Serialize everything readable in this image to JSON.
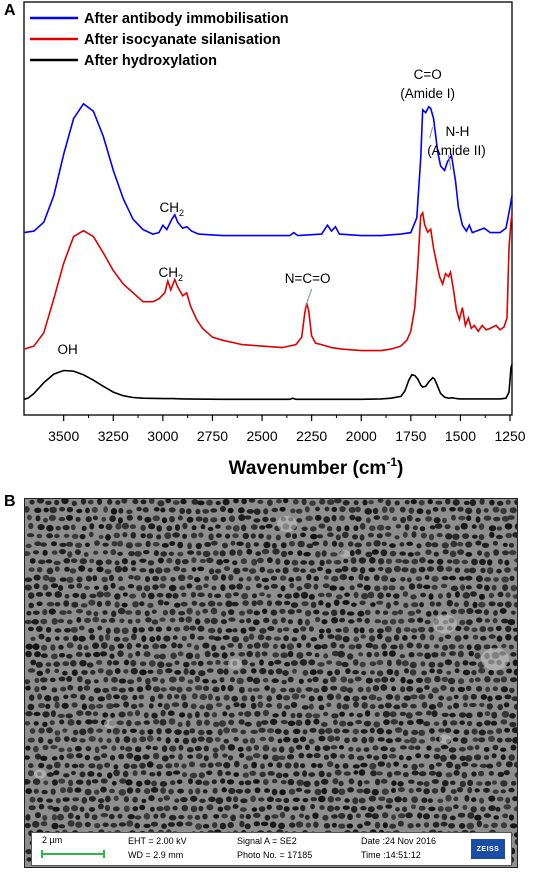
{
  "panel_a_label": "A",
  "panel_b_label": "B",
  "chart_data": {
    "type": "line",
    "title": "",
    "xlabel": "Wavenumber (cm-1)",
    "xlabel_base": "Wavenumber (cm",
    "xlabel_sup": "-1",
    "xlabel_tail": ")",
    "ylabel": "",
    "xlim": [
      3700,
      1240
    ],
    "x_reversed": true,
    "xticks": [
      3500,
      3250,
      3000,
      2750,
      2500,
      2250,
      2000,
      1750,
      1500,
      1250
    ],
    "yticks_shown": false,
    "legend_position": "top-left",
    "series": [
      {
        "name": "After antibody immobilisation",
        "color": "#0000ff",
        "points": [
          [
            3700,
            0.05
          ],
          [
            3650,
            0.06
          ],
          [
            3600,
            0.12
          ],
          [
            3550,
            0.3
          ],
          [
            3500,
            0.58
          ],
          [
            3450,
            0.82
          ],
          [
            3400,
            0.92
          ],
          [
            3350,
            0.87
          ],
          [
            3300,
            0.7
          ],
          [
            3250,
            0.47
          ],
          [
            3200,
            0.28
          ],
          [
            3150,
            0.14
          ],
          [
            3100,
            0.07
          ],
          [
            3050,
            0.04
          ],
          [
            3020,
            0.05
          ],
          [
            3000,
            0.1
          ],
          [
            2980,
            0.07
          ],
          [
            2955,
            0.14
          ],
          [
            2940,
            0.17
          ],
          [
            2925,
            0.12
          ],
          [
            2900,
            0.08
          ],
          [
            2880,
            0.09
          ],
          [
            2855,
            0.06
          ],
          [
            2820,
            0.04
          ],
          [
            2700,
            0.03
          ],
          [
            2500,
            0.03
          ],
          [
            2360,
            0.03
          ],
          [
            2340,
            0.05
          ],
          [
            2320,
            0.03
          ],
          [
            2200,
            0.04
          ],
          [
            2170,
            0.1
          ],
          [
            2150,
            0.06
          ],
          [
            2130,
            0.09
          ],
          [
            2110,
            0.04
          ],
          [
            2000,
            0.03
          ],
          [
            1900,
            0.03
          ],
          [
            1800,
            0.04
          ],
          [
            1750,
            0.05
          ],
          [
            1720,
            0.15
          ],
          [
            1700,
            0.55
          ],
          [
            1690,
            0.88
          ],
          [
            1675,
            0.86
          ],
          [
            1660,
            0.9
          ],
          [
            1650,
            0.89
          ],
          [
            1635,
            0.82
          ],
          [
            1615,
            0.6
          ],
          [
            1600,
            0.5
          ],
          [
            1580,
            0.47
          ],
          [
            1565,
            0.53
          ],
          [
            1545,
            0.57
          ],
          [
            1525,
            0.4
          ],
          [
            1510,
            0.22
          ],
          [
            1490,
            0.1
          ],
          [
            1470,
            0.06
          ],
          [
            1455,
            0.1
          ],
          [
            1440,
            0.05
          ],
          [
            1400,
            0.07
          ],
          [
            1380,
            0.08
          ],
          [
            1350,
            0.05
          ],
          [
            1300,
            0.05
          ],
          [
            1270,
            0.08
          ],
          [
            1250,
            0.22
          ],
          [
            1240,
            0.3
          ]
        ]
      },
      {
        "name": "After isocyanate silanisation",
        "color": "#e00000",
        "points": [
          [
            3700,
            0.04
          ],
          [
            3650,
            0.06
          ],
          [
            3600,
            0.15
          ],
          [
            3550,
            0.38
          ],
          [
            3500,
            0.62
          ],
          [
            3450,
            0.8
          ],
          [
            3400,
            0.84
          ],
          [
            3350,
            0.8
          ],
          [
            3300,
            0.69
          ],
          [
            3250,
            0.57
          ],
          [
            3200,
            0.48
          ],
          [
            3150,
            0.42
          ],
          [
            3100,
            0.36
          ],
          [
            3050,
            0.36
          ],
          [
            3020,
            0.38
          ],
          [
            2990,
            0.42
          ],
          [
            2975,
            0.5
          ],
          [
            2960,
            0.44
          ],
          [
            2940,
            0.51
          ],
          [
            2925,
            0.46
          ],
          [
            2900,
            0.4
          ],
          [
            2880,
            0.42
          ],
          [
            2860,
            0.33
          ],
          [
            2830,
            0.24
          ],
          [
            2800,
            0.18
          ],
          [
            2750,
            0.12
          ],
          [
            2700,
            0.1
          ],
          [
            2600,
            0.07
          ],
          [
            2500,
            0.06
          ],
          [
            2400,
            0.05
          ],
          [
            2330,
            0.07
          ],
          [
            2300,
            0.12
          ],
          [
            2285,
            0.28
          ],
          [
            2275,
            0.35
          ],
          [
            2265,
            0.3
          ],
          [
            2250,
            0.13
          ],
          [
            2230,
            0.08
          ],
          [
            2200,
            0.07
          ],
          [
            2150,
            0.05
          ],
          [
            2100,
            0.04
          ],
          [
            2000,
            0.03
          ],
          [
            1900,
            0.03
          ],
          [
            1850,
            0.04
          ],
          [
            1800,
            0.06
          ],
          [
            1770,
            0.1
          ],
          [
            1750,
            0.16
          ],
          [
            1730,
            0.32
          ],
          [
            1715,
            0.6
          ],
          [
            1700,
            0.94
          ],
          [
            1690,
            0.96
          ],
          [
            1680,
            0.88
          ],
          [
            1665,
            0.83
          ],
          [
            1650,
            0.85
          ],
          [
            1635,
            0.72
          ],
          [
            1620,
            0.62
          ],
          [
            1605,
            0.53
          ],
          [
            1590,
            0.48
          ],
          [
            1575,
            0.55
          ],
          [
            1560,
            0.53
          ],
          [
            1550,
            0.56
          ],
          [
            1535,
            0.44
          ],
          [
            1520,
            0.3
          ],
          [
            1505,
            0.24
          ],
          [
            1490,
            0.32
          ],
          [
            1475,
            0.2
          ],
          [
            1460,
            0.25
          ],
          [
            1445,
            0.18
          ],
          [
            1430,
            0.2
          ],
          [
            1410,
            0.16
          ],
          [
            1390,
            0.2
          ],
          [
            1370,
            0.17
          ],
          [
            1350,
            0.18
          ],
          [
            1320,
            0.2
          ],
          [
            1300,
            0.17
          ],
          [
            1280,
            0.19
          ],
          [
            1265,
            0.25
          ],
          [
            1255,
            0.72
          ],
          [
            1245,
            0.9
          ],
          [
            1240,
            0.95
          ]
        ]
      },
      {
        "name": "After hydroxylation",
        "color": "#000000",
        "points": [
          [
            3700,
            0.02
          ],
          [
            3680,
            0.05
          ],
          [
            3650,
            0.18
          ],
          [
            3600,
            0.48
          ],
          [
            3550,
            0.72
          ],
          [
            3500,
            0.82
          ],
          [
            3450,
            0.8
          ],
          [
            3400,
            0.7
          ],
          [
            3350,
            0.55
          ],
          [
            3300,
            0.38
          ],
          [
            3250,
            0.22
          ],
          [
            3200,
            0.12
          ],
          [
            3150,
            0.07
          ],
          [
            3100,
            0.05
          ],
          [
            3000,
            0.04
          ],
          [
            2950,
            0.04
          ],
          [
            2900,
            0.03
          ],
          [
            2700,
            0.02
          ],
          [
            2500,
            0.02
          ],
          [
            2360,
            0.02
          ],
          [
            2345,
            0.05
          ],
          [
            2330,
            0.02
          ],
          [
            2200,
            0.02
          ],
          [
            2000,
            0.02
          ],
          [
            1900,
            0.03
          ],
          [
            1850,
            0.05
          ],
          [
            1800,
            0.1
          ],
          [
            1780,
            0.25
          ],
          [
            1760,
            0.55
          ],
          [
            1745,
            0.7
          ],
          [
            1730,
            0.68
          ],
          [
            1715,
            0.58
          ],
          [
            1700,
            0.42
          ],
          [
            1690,
            0.36
          ],
          [
            1675,
            0.38
          ],
          [
            1660,
            0.5
          ],
          [
            1640,
            0.62
          ],
          [
            1630,
            0.58
          ],
          [
            1615,
            0.38
          ],
          [
            1600,
            0.18
          ],
          [
            1580,
            0.08
          ],
          [
            1560,
            0.05
          ],
          [
            1540,
            0.06
          ],
          [
            1520,
            0.04
          ],
          [
            1500,
            0.03
          ],
          [
            1400,
            0.03
          ],
          [
            1300,
            0.03
          ],
          [
            1270,
            0.05
          ],
          [
            1255,
            0.22
          ],
          [
            1245,
            0.9
          ],
          [
            1240,
            1.0
          ]
        ]
      }
    ],
    "annotations": [
      {
        "id": "ch2-blue",
        "text": "CH",
        "sub": "2"
      },
      {
        "id": "ch2-red",
        "text": "CH",
        "sub": "2"
      },
      {
        "id": "nco",
        "text": "N=C=O"
      },
      {
        "id": "oh",
        "text": "OH"
      },
      {
        "id": "amide1-a",
        "text": "C=O"
      },
      {
        "id": "amide1-b",
        "text": "(Amide I)"
      },
      {
        "id": "amide2-a",
        "text": "N-H"
      },
      {
        "id": "amide2-b",
        "text": "(Amide II)"
      }
    ]
  },
  "sem": {
    "scale_bar": "2 µm",
    "eht": "EHT =  2.00 kV",
    "wd": "WD =  2.9 mm",
    "signal": "Signal A = SE2",
    "photo": "Photo No. = 17185",
    "date": "Date :24 Nov 2016",
    "time": "Time :14:51:12",
    "logo": "ZEISS"
  }
}
